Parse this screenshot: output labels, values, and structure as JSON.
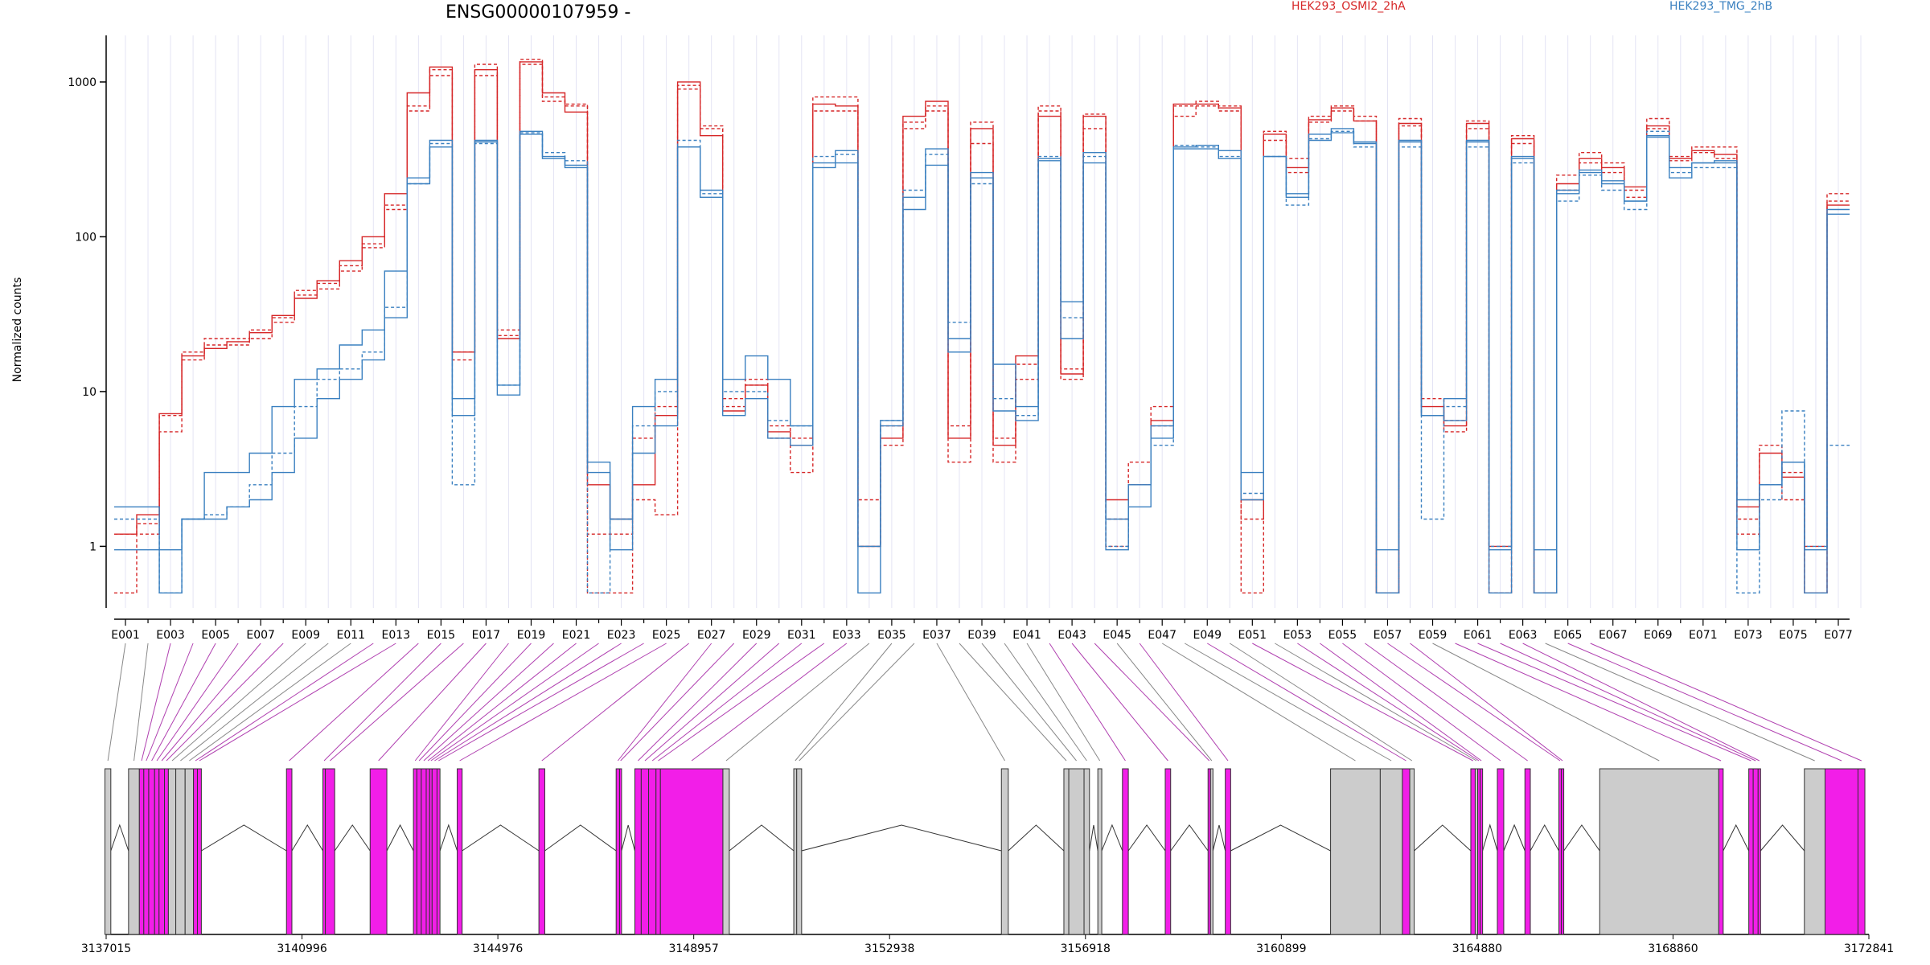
{
  "chart_data": {
    "type": "line",
    "title": "ENSG00000107959 -",
    "ylabel": "Normalized counts",
    "y_scale": "log",
    "ylim": [
      0.4,
      2000
    ],
    "yticks": [
      {
        "value": 1,
        "label": "1"
      },
      {
        "value": 10,
        "label": "10"
      },
      {
        "value": 100,
        "label": "100"
      },
      {
        "value": 1000,
        "label": "1000"
      }
    ],
    "exon_labels_shown": [
      "E001",
      "E003",
      "E005",
      "E007",
      "E009",
      "E011",
      "E013",
      "E015",
      "E017",
      "E019",
      "E021",
      "E023",
      "E025",
      "E027",
      "E029",
      "E031",
      "E033",
      "E035",
      "E037",
      "E039",
      "E041",
      "E043",
      "E045",
      "E047",
      "E049",
      "E051",
      "E053",
      "E055",
      "E057",
      "E059",
      "E061",
      "E063",
      "E065",
      "E067",
      "E069",
      "E071",
      "E073",
      "E075",
      "E077"
    ],
    "genomic_ticks": [
      "3137015",
      "3140996",
      "3144976",
      "3148957",
      "3152938",
      "3156918",
      "3160899",
      "3164880",
      "3168860",
      "3172841"
    ],
    "legend": [
      {
        "name": "HEK293_OSMI2_2hA",
        "color": "#d62728"
      },
      {
        "name": "HEK293_TMG_2hB",
        "color": "#3a80c0"
      }
    ],
    "grid": "vertical per exon",
    "series": [
      {
        "name": "HEK293_OSMI2_2hA",
        "color": "#d62728",
        "replicate": 1,
        "style": "dashed",
        "values": [
          0.5,
          1.2,
          7,
          18,
          22,
          22,
          25,
          30,
          45,
          50,
          65,
          90,
          160,
          650,
          1100,
          18,
          1100,
          25,
          1300,
          750,
          700,
          0.5,
          0.5,
          5,
          8,
          900,
          500,
          8,
          11,
          5,
          5,
          650,
          650,
          2,
          6,
          500,
          650,
          3.5,
          400,
          3.5,
          12,
          650,
          12,
          500,
          1,
          2.5,
          6,
          600,
          750,
          700,
          0.5,
          420,
          320,
          550,
          650,
          560,
          0.5,
          520,
          7,
          5.5,
          500,
          0.5,
          400,
          0.5,
          250,
          300,
          260,
          200,
          500,
          330,
          350,
          320,
          1.5,
          2.5,
          2,
          0.5,
          170
        ]
      },
      {
        "name": "HEK293_OSMI2_2hA",
        "color": "#d62728",
        "replicate": 2,
        "style": "dashed",
        "values": [
          1.2,
          1.4,
          5.5,
          16,
          20,
          20,
          22,
          28,
          42,
          46,
          60,
          85,
          150,
          700,
          1200,
          16,
          1300,
          23,
          1400,
          800,
          720,
          1.2,
          1.2,
          2,
          1.6,
          950,
          520,
          9,
          12,
          6,
          3,
          800,
          800,
          1,
          4.5,
          550,
          700,
          6,
          550,
          5,
          15,
          700,
          14,
          620,
          1.5,
          3.5,
          8,
          700,
          700,
          650,
          1.5,
          480,
          260,
          600,
          700,
          600,
          0.5,
          580,
          9,
          6.5,
          560,
          0.5,
          450,
          0.5,
          200,
          350,
          300,
          180,
          580,
          310,
          380,
          380,
          1.2,
          4.5,
          3,
          1,
          190
        ]
      },
      {
        "name": "HEK293_OSMI2_2hA",
        "color": "#d62728",
        "replicate": 3,
        "style": "solid",
        "values": [
          1.2,
          1.6,
          7.2,
          17,
          19,
          21,
          24,
          31,
          40,
          52,
          70,
          100,
          190,
          850,
          1250,
          18,
          1200,
          22,
          1350,
          850,
          640,
          2.5,
          1.5,
          2.5,
          7,
          1000,
          450,
          7.5,
          11,
          5.5,
          4.5,
          720,
          700,
          1,
          5,
          600,
          750,
          5,
          500,
          4.5,
          17,
          600,
          13,
          600,
          2,
          2.5,
          6.5,
          720,
          720,
          680,
          2,
          460,
          280,
          570,
          680,
          560,
          0.5,
          540,
          8,
          6,
          540,
          1,
          430,
          0.5,
          220,
          320,
          280,
          210,
          520,
          320,
          360,
          340,
          1.8,
          4,
          2.8,
          0.5,
          160
        ]
      },
      {
        "name": "HEK293_TMG_2hB",
        "color": "#3a80c0",
        "replicate": 1,
        "style": "dashed",
        "values": [
          1.5,
          1.5,
          0.5,
          1.5,
          1.6,
          1.8,
          2.5,
          4,
          8,
          12,
          14,
          18,
          35,
          220,
          400,
          2.5,
          400,
          11,
          470,
          350,
          310,
          0.5,
          1.5,
          6,
          10,
          420,
          190,
          10,
          10,
          6.5,
          6,
          330,
          340,
          1,
          6.5,
          200,
          340,
          28,
          220,
          9,
          7,
          330,
          30,
          330,
          1,
          2.5,
          4.5,
          390,
          380,
          330,
          2.2,
          330,
          160,
          430,
          480,
          380,
          0.5,
          380,
          1.5,
          8,
          380,
          1,
          300,
          0.5,
          170,
          250,
          200,
          150,
          480,
          260,
          280,
          280,
          0.5,
          2,
          7.5,
          1,
          4.5
        ]
      },
      {
        "name": "HEK293_TMG_2hB",
        "color": "#3a80c0",
        "replicate": 2,
        "style": "solid",
        "values": [
          0.95,
          0.95,
          0.95,
          1.5,
          1.5,
          1.8,
          2,
          3,
          5,
          9,
          12,
          16,
          30,
          240,
          420,
          7,
          410,
          9.5,
          480,
          330,
          280,
          3,
          1.5,
          4,
          6,
          380,
          200,
          7,
          9,
          5,
          4.5,
          300,
          360,
          1,
          6.5,
          180,
          370,
          18,
          240,
          7.5,
          6.5,
          310,
          22,
          350,
          0.95,
          2.5,
          6,
          370,
          370,
          360,
          3,
          330,
          180,
          460,
          500,
          410,
          0.95,
          420,
          7,
          6.5,
          410,
          0.95,
          320,
          0.95,
          190,
          260,
          220,
          170,
          440,
          280,
          300,
          310,
          2,
          2.5,
          3.5,
          0.95,
          150
        ]
      },
      {
        "name": "HEK293_TMG_2hB",
        "color": "#3a80c0",
        "replicate": 3,
        "style": "solid",
        "values": [
          1.8,
          1.8,
          0.5,
          1.5,
          3,
          3,
          4,
          8,
          12,
          14,
          20,
          25,
          60,
          220,
          380,
          9,
          420,
          11,
          460,
          320,
          290,
          3.5,
          0.95,
          8,
          12,
          380,
          180,
          12,
          17,
          12,
          6,
          280,
          300,
          0.5,
          6,
          150,
          290,
          22,
          260,
          15,
          8,
          320,
          38,
          300,
          1.5,
          1.8,
          5,
          380,
          390,
          320,
          2,
          330,
          190,
          420,
          470,
          400,
          0.5,
          410,
          7,
          9,
          420,
          0.5,
          330,
          0.5,
          200,
          270,
          230,
          170,
          450,
          240,
          300,
          300,
          0.95,
          2.5,
          3.5,
          0.5,
          140
        ]
      }
    ],
    "exon_blocks": [
      {
        "start": 3136990,
        "end": 3137110,
        "color": "gray",
        "id": "E001"
      },
      {
        "start": 3137470,
        "end": 3137690,
        "color": "gray",
        "id": "E002"
      },
      {
        "start": 3137690,
        "end": 3137780,
        "color": "magenta",
        "id": "E003"
      },
      {
        "start": 3137780,
        "end": 3137880,
        "color": "magenta",
        "id": "E004"
      },
      {
        "start": 3137880,
        "end": 3138000,
        "color": "magenta",
        "id": "E005"
      },
      {
        "start": 3138000,
        "end": 3138090,
        "color": "magenta",
        "id": "E006"
      },
      {
        "start": 3138090,
        "end": 3138200,
        "color": "magenta",
        "id": "E007"
      },
      {
        "start": 3138200,
        "end": 3138280,
        "color": "magenta",
        "id": "E008"
      },
      {
        "start": 3138280,
        "end": 3138430,
        "color": "gray",
        "id": "E009"
      },
      {
        "start": 3138430,
        "end": 3138620,
        "color": "gray",
        "id": "E010"
      },
      {
        "start": 3138620,
        "end": 3138790,
        "color": "gray",
        "id": "E011"
      },
      {
        "start": 3138790,
        "end": 3138870,
        "color": "magenta",
        "id": "E012"
      },
      {
        "start": 3138870,
        "end": 3138950,
        "color": "magenta",
        "id": "E013"
      },
      {
        "start": 3140680,
        "end": 3140790,
        "color": "magenta",
        "id": "E014"
      },
      {
        "start": 3141420,
        "end": 3141470,
        "color": "magenta",
        "id": "E015"
      },
      {
        "start": 3141470,
        "end": 3141660,
        "color": "magenta",
        "id": "E016"
      },
      {
        "start": 3142380,
        "end": 3142720,
        "color": "magenta",
        "id": "E017"
      },
      {
        "start": 3143260,
        "end": 3143330,
        "color": "magenta",
        "id": "E018"
      },
      {
        "start": 3143330,
        "end": 3143420,
        "color": "magenta",
        "id": "E019"
      },
      {
        "start": 3143420,
        "end": 3143520,
        "color": "magenta",
        "id": "E020"
      },
      {
        "start": 3143520,
        "end": 3143590,
        "color": "magenta",
        "id": "E021"
      },
      {
        "start": 3143590,
        "end": 3143640,
        "color": "magenta",
        "id": "E022"
      },
      {
        "start": 3143640,
        "end": 3143740,
        "color": "magenta",
        "id": "E023"
      },
      {
        "start": 3143740,
        "end": 3143800,
        "color": "magenta",
        "id": "E024"
      },
      {
        "start": 3144150,
        "end": 3144250,
        "color": "magenta",
        "id": "E025"
      },
      {
        "start": 3145810,
        "end": 3145930,
        "color": "magenta",
        "id": "E026"
      },
      {
        "start": 3147380,
        "end": 3147450,
        "color": "magenta",
        "id": "E027"
      },
      {
        "start": 3147450,
        "end": 3147490,
        "color": "magenta",
        "id": "E028"
      },
      {
        "start": 3147760,
        "end": 3147890,
        "color": "magenta",
        "id": "E029"
      },
      {
        "start": 3147890,
        "end": 3148040,
        "color": "magenta",
        "id": "E030"
      },
      {
        "start": 3148040,
        "end": 3148190,
        "color": "magenta",
        "id": "E031"
      },
      {
        "start": 3148190,
        "end": 3148280,
        "color": "magenta",
        "id": "E032"
      },
      {
        "start": 3148280,
        "end": 3149550,
        "color": "magenta",
        "id": "E033"
      },
      {
        "start": 3149550,
        "end": 3149680,
        "color": "gray",
        "id": "E034"
      },
      {
        "start": 3150990,
        "end": 3151050,
        "color": "gray",
        "id": "E035"
      },
      {
        "start": 3151050,
        "end": 3151150,
        "color": "gray",
        "id": "E036"
      },
      {
        "start": 3155210,
        "end": 3155350,
        "color": "gray",
        "id": "E037"
      },
      {
        "start": 3156480,
        "end": 3156580,
        "color": "gray",
        "id": "E038"
      },
      {
        "start": 3156580,
        "end": 3156890,
        "color": "gray",
        "id": "E039"
      },
      {
        "start": 3156890,
        "end": 3157000,
        "color": "gray",
        "id": "E040"
      },
      {
        "start": 3157170,
        "end": 3157250,
        "color": "gray",
        "id": "E041"
      },
      {
        "start": 3157670,
        "end": 3157790,
        "color": "magenta",
        "id": "E042"
      },
      {
        "start": 3158540,
        "end": 3158650,
        "color": "magenta",
        "id": "E043"
      },
      {
        "start": 3159410,
        "end": 3159460,
        "color": "magenta",
        "id": "E044"
      },
      {
        "start": 3159460,
        "end": 3159510,
        "color": "gray",
        "id": "E045"
      },
      {
        "start": 3159760,
        "end": 3159870,
        "color": "magenta",
        "id": "E046"
      },
      {
        "start": 3161900,
        "end": 3162910,
        "color": "gray",
        "id": "E047"
      },
      {
        "start": 3162910,
        "end": 3163360,
        "color": "gray",
        "id": "E048"
      },
      {
        "start": 3163360,
        "end": 3163510,
        "color": "magenta",
        "id": "E049"
      },
      {
        "start": 3163510,
        "end": 3163600,
        "color": "gray",
        "id": "E050"
      },
      {
        "start": 3164750,
        "end": 3164840,
        "color": "magenta",
        "id": "E051"
      },
      {
        "start": 3164840,
        "end": 3164890,
        "color": "gray",
        "id": "E052"
      },
      {
        "start": 3164890,
        "end": 3164940,
        "color": "magenta",
        "id": "E053"
      },
      {
        "start": 3164940,
        "end": 3164990,
        "color": "magenta",
        "id": "E054"
      },
      {
        "start": 3165290,
        "end": 3165420,
        "color": "magenta",
        "id": "E055"
      },
      {
        "start": 3165850,
        "end": 3165960,
        "color": "magenta",
        "id": "E056"
      },
      {
        "start": 3166540,
        "end": 3166590,
        "color": "magenta",
        "id": "E057"
      },
      {
        "start": 3166590,
        "end": 3166640,
        "color": "magenta",
        "id": "E058"
      },
      {
        "start": 3167370,
        "end": 3169790,
        "color": "gray",
        "id": "E059"
      },
      {
        "start": 3169790,
        "end": 3169880,
        "color": "magenta",
        "id": "E060"
      },
      {
        "start": 3170400,
        "end": 3170490,
        "color": "magenta",
        "id": "E061"
      },
      {
        "start": 3170490,
        "end": 3170590,
        "color": "magenta",
        "id": "E062"
      },
      {
        "start": 3170590,
        "end": 3170640,
        "color": "magenta",
        "id": "E063"
      },
      {
        "start": 3171530,
        "end": 3171950,
        "color": "gray",
        "id": "E064"
      },
      {
        "start": 3171950,
        "end": 3172620,
        "color": "magenta",
        "id": "E065"
      },
      {
        "start": 3172620,
        "end": 3172760,
        "color": "magenta",
        "id": "E066"
      }
    ]
  }
}
